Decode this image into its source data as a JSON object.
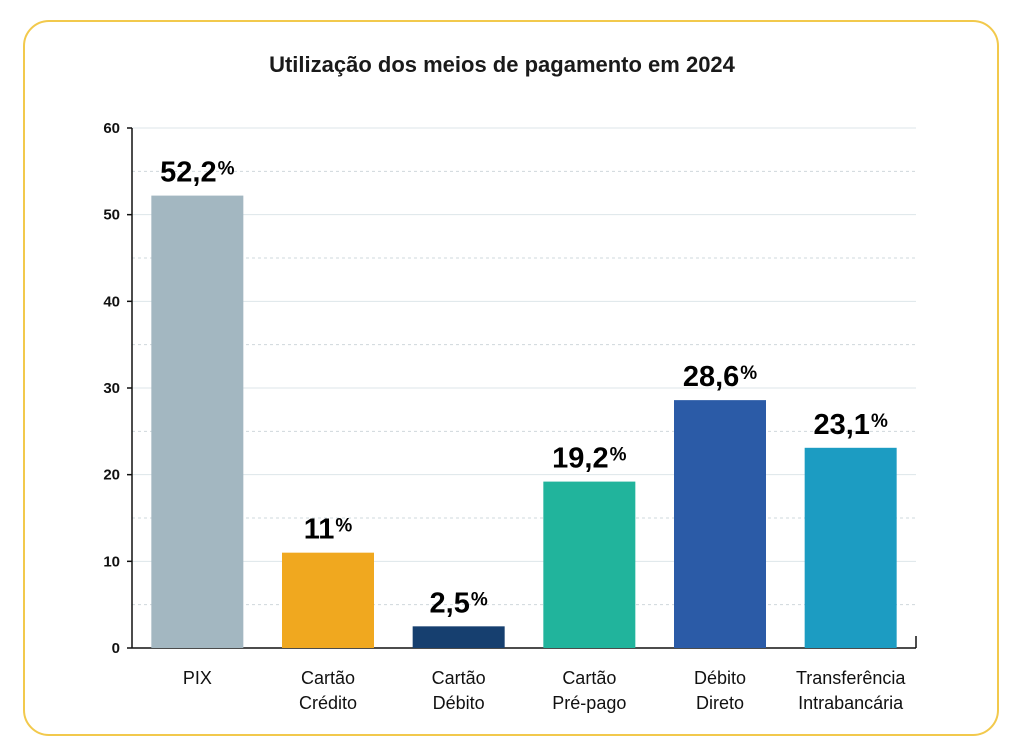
{
  "chart_data": {
    "type": "bar",
    "title": "Utilização dos meios de pagamento em 2024",
    "categories": [
      [
        "PIX"
      ],
      [
        "Cartão",
        "Crédito"
      ],
      [
        "Cartão",
        "Débito"
      ],
      [
        "Cartão",
        "Pré-pago"
      ],
      [
        "Débito",
        "Direto"
      ],
      [
        "Transferência",
        "Intrabancária"
      ]
    ],
    "values": [
      52.2,
      11,
      2.5,
      19.2,
      28.6,
      23.1
    ],
    "value_labels": [
      "52,2",
      "11",
      "2,5",
      "19,2",
      "28,6",
      "23,1"
    ],
    "value_suffix": "%",
    "colors": [
      "#a3b7c1",
      "#f0a81f",
      "#163f6f",
      "#21b49c",
      "#2b5ba7",
      "#1c9cc2"
    ],
    "ylim": [
      0,
      60
    ],
    "yticks": [
      0,
      10,
      20,
      30,
      40,
      50,
      60
    ],
    "xlabel": "",
    "ylabel": "",
    "grid": true
  }
}
